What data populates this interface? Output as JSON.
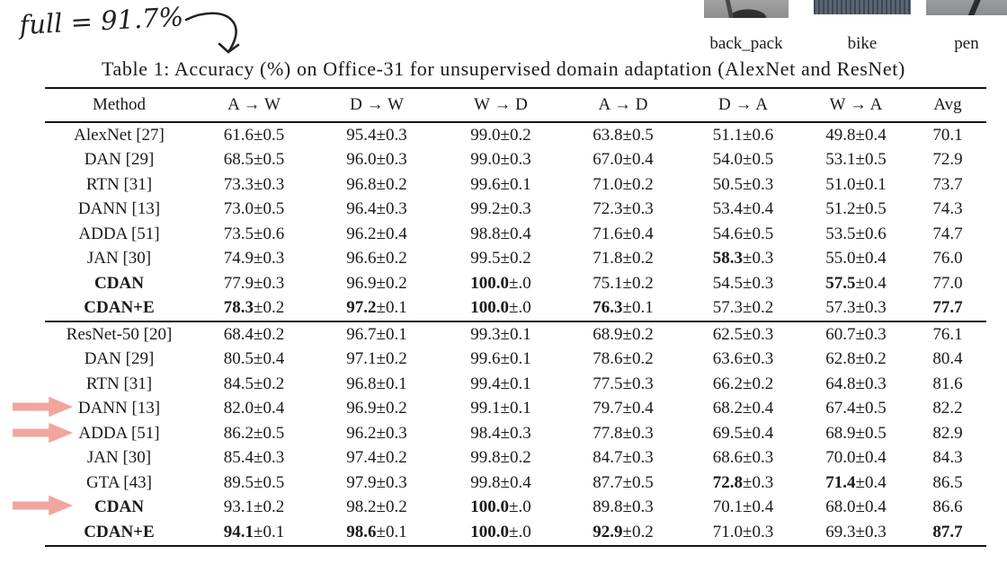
{
  "annotation": {
    "handwriting": "full = 91.7%"
  },
  "sample_images": [
    {
      "label": "back_pack"
    },
    {
      "label": "bike"
    },
    {
      "label": "pen"
    }
  ],
  "table": {
    "caption": "Table 1: Accuracy (%) on Office-31 for unsupervised domain adaptation (AlexNet and ResNet)",
    "columns": [
      "Method",
      "A → W",
      "D → W",
      "W → D",
      "A → D",
      "D → A",
      "W → A",
      "Avg"
    ],
    "groups": [
      {
        "name": "alexnet",
        "rows": [
          {
            "method": "AlexNet [27]",
            "bold_method": false,
            "cells": [
              [
                "61.6",
                "0.5",
                false
              ],
              [
                "95.4",
                "0.3",
                false
              ],
              [
                "99.0",
                "0.2",
                false
              ],
              [
                "63.8",
                "0.5",
                false
              ],
              [
                "51.1",
                "0.6",
                false
              ],
              [
                "49.8",
                "0.4",
                false
              ],
              [
                "70.1",
                null,
                false
              ]
            ]
          },
          {
            "method": "DAN [29]",
            "bold_method": false,
            "cells": [
              [
                "68.5",
                "0.5",
                false
              ],
              [
                "96.0",
                "0.3",
                false
              ],
              [
                "99.0",
                "0.3",
                false
              ],
              [
                "67.0",
                "0.4",
                false
              ],
              [
                "54.0",
                "0.5",
                false
              ],
              [
                "53.1",
                "0.5",
                false
              ],
              [
                "72.9",
                null,
                false
              ]
            ]
          },
          {
            "method": "RTN [31]",
            "bold_method": false,
            "cells": [
              [
                "73.3",
                "0.3",
                false
              ],
              [
                "96.8",
                "0.2",
                false
              ],
              [
                "99.6",
                "0.1",
                false
              ],
              [
                "71.0",
                "0.2",
                false
              ],
              [
                "50.5",
                "0.3",
                false
              ],
              [
                "51.0",
                "0.1",
                false
              ],
              [
                "73.7",
                null,
                false
              ]
            ]
          },
          {
            "method": "DANN [13]",
            "bold_method": false,
            "cells": [
              [
                "73.0",
                "0.5",
                false
              ],
              [
                "96.4",
                "0.3",
                false
              ],
              [
                "99.2",
                "0.3",
                false
              ],
              [
                "72.3",
                "0.3",
                false
              ],
              [
                "53.4",
                "0.4",
                false
              ],
              [
                "51.2",
                "0.5",
                false
              ],
              [
                "74.3",
                null,
                false
              ]
            ]
          },
          {
            "method": "ADDA [51]",
            "bold_method": false,
            "cells": [
              [
                "73.5",
                "0.6",
                false
              ],
              [
                "96.2",
                "0.4",
                false
              ],
              [
                "98.8",
                "0.4",
                false
              ],
              [
                "71.6",
                "0.4",
                false
              ],
              [
                "54.6",
                "0.5",
                false
              ],
              [
                "53.5",
                "0.6",
                false
              ],
              [
                "74.7",
                null,
                false
              ]
            ]
          },
          {
            "method": "JAN [30]",
            "bold_method": false,
            "cells": [
              [
                "74.9",
                "0.3",
                false
              ],
              [
                "96.6",
                "0.2",
                false
              ],
              [
                "99.5",
                "0.2",
                false
              ],
              [
                "71.8",
                "0.2",
                false
              ],
              [
                "58.3",
                "0.3",
                true
              ],
              [
                "55.0",
                "0.4",
                false
              ],
              [
                "76.0",
                null,
                false
              ]
            ]
          },
          {
            "method": "CDAN",
            "bold_method": true,
            "cells": [
              [
                "77.9",
                "0.3",
                false
              ],
              [
                "96.9",
                "0.2",
                false
              ],
              [
                "100.0",
                ".0",
                true
              ],
              [
                "75.1",
                "0.2",
                false
              ],
              [
                "54.5",
                "0.3",
                false
              ],
              [
                "57.5",
                "0.4",
                true
              ],
              [
                "77.0",
                null,
                false
              ]
            ]
          },
          {
            "method": "CDAN+E",
            "bold_method": true,
            "cells": [
              [
                "78.3",
                "0.2",
                true
              ],
              [
                "97.2",
                "0.1",
                true
              ],
              [
                "100.0",
                ".0",
                true
              ],
              [
                "76.3",
                "0.1",
                true
              ],
              [
                "57.3",
                "0.2",
                false
              ],
              [
                "57.3",
                "0.3",
                false
              ],
              [
                "77.7",
                null,
                true
              ]
            ]
          }
        ]
      },
      {
        "name": "resnet",
        "rows": [
          {
            "method": "ResNet-50 [20]",
            "bold_method": false,
            "cells": [
              [
                "68.4",
                "0.2",
                false
              ],
              [
                "96.7",
                "0.1",
                false
              ],
              [
                "99.3",
                "0.1",
                false
              ],
              [
                "68.9",
                "0.2",
                false
              ],
              [
                "62.5",
                "0.3",
                false
              ],
              [
                "60.7",
                "0.3",
                false
              ],
              [
                "76.1",
                null,
                false
              ]
            ]
          },
          {
            "method": "DAN [29]",
            "bold_method": false,
            "cells": [
              [
                "80.5",
                "0.4",
                false
              ],
              [
                "97.1",
                "0.2",
                false
              ],
              [
                "99.6",
                "0.1",
                false
              ],
              [
                "78.6",
                "0.2",
                false
              ],
              [
                "63.6",
                "0.3",
                false
              ],
              [
                "62.8",
                "0.2",
                false
              ],
              [
                "80.4",
                null,
                false
              ]
            ]
          },
          {
            "method": "RTN [31]",
            "bold_method": false,
            "cells": [
              [
                "84.5",
                "0.2",
                false
              ],
              [
                "96.8",
                "0.1",
                false
              ],
              [
                "99.4",
                "0.1",
                false
              ],
              [
                "77.5",
                "0.3",
                false
              ],
              [
                "66.2",
                "0.2",
                false
              ],
              [
                "64.8",
                "0.3",
                false
              ],
              [
                "81.6",
                null,
                false
              ]
            ]
          },
          {
            "method": "DANN [13]",
            "bold_method": false,
            "arrow": true,
            "cells": [
              [
                "82.0",
                "0.4",
                false
              ],
              [
                "96.9",
                "0.2",
                false
              ],
              [
                "99.1",
                "0.1",
                false
              ],
              [
                "79.7",
                "0.4",
                false
              ],
              [
                "68.2",
                "0.4",
                false
              ],
              [
                "67.4",
                "0.5",
                false
              ],
              [
                "82.2",
                null,
                false
              ]
            ]
          },
          {
            "method": "ADDA [51]",
            "bold_method": false,
            "arrow": true,
            "cells": [
              [
                "86.2",
                "0.5",
                false
              ],
              [
                "96.2",
                "0.3",
                false
              ],
              [
                "98.4",
                "0.3",
                false
              ],
              [
                "77.8",
                "0.3",
                false
              ],
              [
                "69.5",
                "0.4",
                false
              ],
              [
                "68.9",
                "0.5",
                false
              ],
              [
                "82.9",
                null,
                false
              ]
            ]
          },
          {
            "method": "JAN [30]",
            "bold_method": false,
            "cells": [
              [
                "85.4",
                "0.3",
                false
              ],
              [
                "97.4",
                "0.2",
                false
              ],
              [
                "99.8",
                "0.2",
                false
              ],
              [
                "84.7",
                "0.3",
                false
              ],
              [
                "68.6",
                "0.3",
                false
              ],
              [
                "70.0",
                "0.4",
                false
              ],
              [
                "84.3",
                null,
                false
              ]
            ]
          },
          {
            "method": "GTA [43]",
            "bold_method": false,
            "cells": [
              [
                "89.5",
                "0.5",
                false
              ],
              [
                "97.9",
                "0.3",
                false
              ],
              [
                "99.8",
                "0.4",
                false
              ],
              [
                "87.7",
                "0.5",
                false
              ],
              [
                "72.8",
                "0.3",
                true
              ],
              [
                "71.4",
                "0.4",
                true
              ],
              [
                "86.5",
                null,
                false
              ]
            ]
          },
          {
            "method": "CDAN",
            "bold_method": true,
            "arrow": true,
            "cells": [
              [
                "93.1",
                "0.2",
                false
              ],
              [
                "98.2",
                "0.2",
                false
              ],
              [
                "100.0",
                ".0",
                true
              ],
              [
                "89.8",
                "0.3",
                false
              ],
              [
                "70.1",
                "0.4",
                false
              ],
              [
                "68.0",
                "0.4",
                false
              ],
              [
                "86.6",
                null,
                false
              ]
            ]
          },
          {
            "method": "CDAN+E",
            "bold_method": true,
            "cells": [
              [
                "94.1",
                "0.1",
                true
              ],
              [
                "98.6",
                "0.1",
                true
              ],
              [
                "100.0",
                ".0",
                true
              ],
              [
                "92.9",
                "0.2",
                true
              ],
              [
                "71.0",
                "0.3",
                false
              ],
              [
                "69.3",
                "0.3",
                false
              ],
              [
                "87.7",
                null,
                true
              ]
            ]
          }
        ]
      }
    ]
  },
  "colors": {
    "highlight_arrow": "#f1a59d",
    "text": "#1a1a1a"
  }
}
